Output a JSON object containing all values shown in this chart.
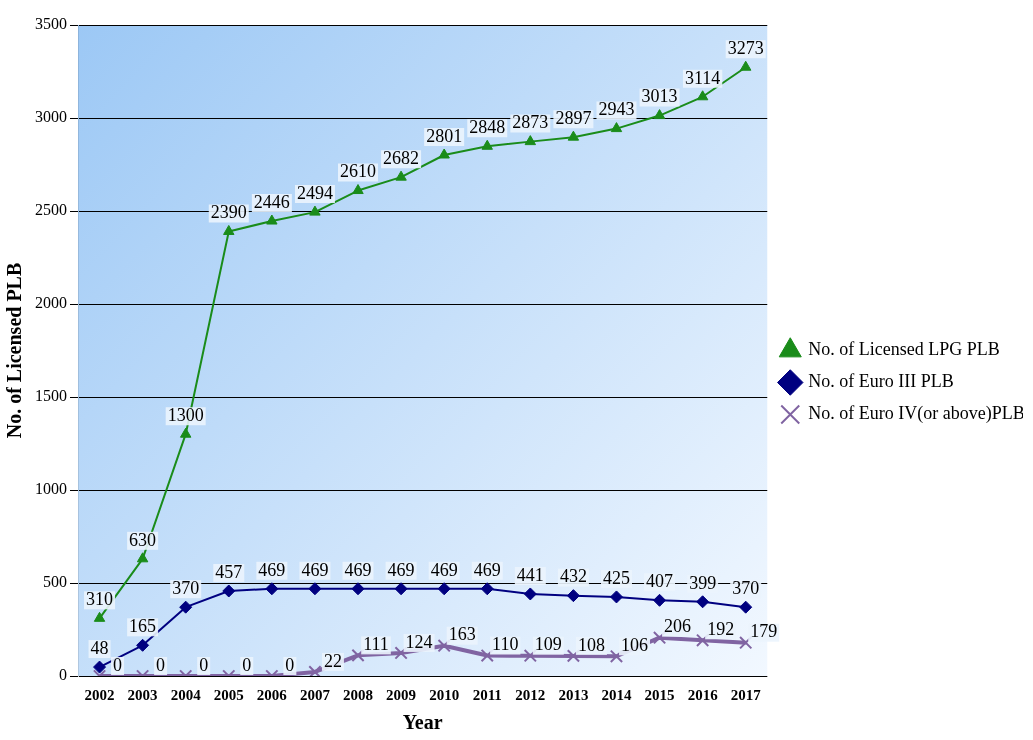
{
  "chart_data": {
    "type": "line",
    "xlabel": "Year",
    "ylabel": "No. of Licensed PLB",
    "categories": [
      "2002",
      "2003",
      "2004",
      "2005",
      "2006",
      "2007",
      "2008",
      "2009",
      "2010",
      "2011",
      "2012",
      "2013",
      "2014",
      "2015",
      "2016",
      "2017"
    ],
    "series": [
      {
        "name": "No. of Licensed LPG PLB",
        "color": "#1a8c1a",
        "marker": "triangle",
        "values": [
          310,
          630,
          1300,
          2390,
          2446,
          2494,
          2610,
          2682,
          2801,
          2848,
          2873,
          2897,
          2943,
          3013,
          3114,
          3273
        ]
      },
      {
        "name": "No. of Euro III PLB",
        "color": "#000080",
        "marker": "diamond",
        "values": [
          48,
          165,
          370,
          457,
          469,
          469,
          469,
          469,
          469,
          469,
          441,
          432,
          425,
          407,
          399,
          370
        ]
      },
      {
        "name": "No. of Euro IV(or above)PLB",
        "color": "#8064a2",
        "marker": "cross",
        "values": [
          0,
          0,
          0,
          0,
          0,
          22,
          111,
          124,
          163,
          110,
          109,
          108,
          106,
          206,
          192,
          179
        ]
      }
    ],
    "ylim": [
      0,
      3500
    ],
    "yticks": [
      0,
      500,
      1000,
      1500,
      2000,
      2500,
      3000,
      3500
    ],
    "grid": "y",
    "legend": "right",
    "data_labels": true,
    "line_style": "solid"
  }
}
